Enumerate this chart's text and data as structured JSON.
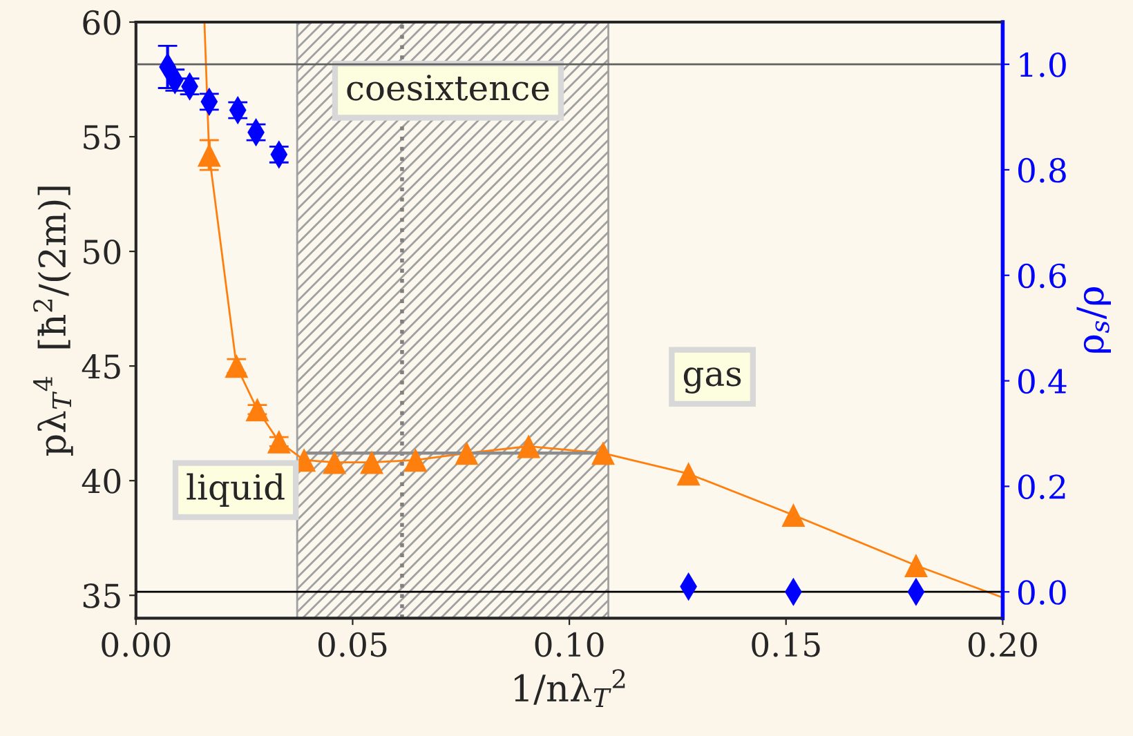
{
  "chart_data": {
    "type": "scatter",
    "xlabel": "1/nλ$_{T}$$^{2}$",
    "ylabel": "pλ$_{T}$$^{4}$  [ħ$^{2}$/(2m)]",
    "y2label": "ρ$_{s}$/ρ",
    "xlim": [
      0,
      0.2
    ],
    "xticks": [
      {
        "value": 0,
        "label": "0.00"
      },
      {
        "value": 0.05,
        "label": "0.05"
      },
      {
        "value": 0.1,
        "label": "0.10"
      },
      {
        "value": 0.15,
        "label": "0.15"
      },
      {
        "value": 0.2,
        "label": "0.20"
      }
    ],
    "ylim": [
      34,
      60
    ],
    "yticks": [
      35,
      40,
      45,
      50,
      55,
      60
    ],
    "y2lim": [
      -0.05,
      1.08
    ],
    "y2ticks": [
      {
        "value": 0,
        "label": "0.0"
      },
      {
        "value": 0.2,
        "label": "0.2"
      },
      {
        "value": 0.4,
        "label": "0.4"
      },
      {
        "value": 0.6,
        "label": "0.6"
      },
      {
        "value": 0.8,
        "label": "0.8"
      },
      {
        "value": 1.0,
        "label": "1.0"
      }
    ],
    "series": [
      {
        "type": "line",
        "color": "#ff7f0e",
        "marker": "none",
        "x": [
          0.0158,
          0.0169,
          0.0232,
          0.028,
          0.033,
          0.0388,
          0.0458,
          0.0544,
          0.0645,
          0.0763,
          0.0906,
          0.1078,
          0.1275,
          0.1517,
          0.18,
          0.2
        ],
        "values": [
          60,
          54.2,
          45.0,
          43.1,
          41.7,
          40.9,
          40.8,
          40.8,
          40.9,
          41.2,
          41.5,
          41.2,
          40.3,
          38.5,
          36.3,
          34.9
        ]
      },
      {
        "color": "#ff7f0e",
        "marker": "triangle",
        "x": [
          0.0169,
          0.0232,
          0.028,
          0.033,
          0.0388,
          0.0458,
          0.0544,
          0.0645,
          0.0763,
          0.0906,
          0.1078,
          0.1275,
          0.1517,
          0.18
        ],
        "values": [
          54.2,
          45.0,
          43.1,
          41.7,
          40.9,
          40.8,
          40.8,
          40.9,
          41.2,
          41.5,
          41.2,
          40.3,
          38.5,
          36.3
        ],
        "errors": [
          0.65,
          0.3,
          0.2,
          0.2,
          null,
          null,
          null,
          null,
          null,
          null,
          null,
          null,
          null,
          null
        ]
      },
      {
        "type": "line",
        "color": "#8c8c8c",
        "marker": "none",
        "x": [
          0.0388,
          0.1078
        ],
        "values": [
          41.2,
          41.2
        ]
      },
      {
        "color": "#0000ff",
        "marker": "diamond",
        "axis": "y2",
        "x": [
          0.0073,
          0.009,
          0.0124,
          0.0169,
          0.0235,
          0.0277,
          0.033,
          0.1275,
          0.1517,
          0.18
        ],
        "values": [
          0.995,
          0.97,
          0.958,
          0.929,
          0.913,
          0.871,
          0.829,
          0.01,
          0.0,
          0.0
        ],
        "errors": [
          0.04,
          0.02,
          0.015,
          0.015,
          0.015,
          0.015,
          0.015,
          null,
          null,
          null
        ]
      }
    ],
    "bands": [
      {
        "axis": "x",
        "from": 0.0372,
        "to": 0.109,
        "color": "#a0a0a0"
      }
    ],
    "ref_lines": [
      {
        "axis": "x",
        "value": 0.0614,
        "line_style": "dotted",
        "color": "#808080"
      },
      {
        "axis": "y2",
        "value": 1.0,
        "line_style": "solid",
        "color": "#606060"
      },
      {
        "axis": "y2",
        "value": 0.0,
        "line_style": "solid",
        "color": "#000000"
      }
    ],
    "annotations": [
      "coesixtence",
      "gas",
      "liquid"
    ],
    "grid": false,
    "legend": false
  }
}
